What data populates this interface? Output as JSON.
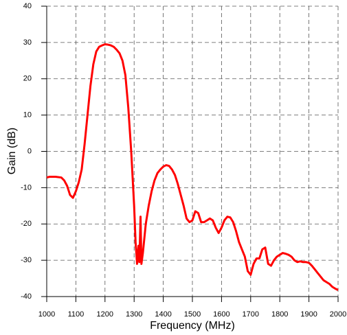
{
  "chart_data": {
    "type": "line",
    "x_label": "Frequency (MHz)",
    "y_label": "Gain (dB)",
    "x": [
      1000,
      1010,
      1030,
      1050,
      1060,
      1070,
      1080,
      1090,
      1100,
      1110,
      1120,
      1130,
      1140,
      1150,
      1160,
      1170,
      1180,
      1190,
      1200,
      1210,
      1220,
      1230,
      1240,
      1250,
      1260,
      1270,
      1280,
      1290,
      1300,
      1305,
      1310,
      1315,
      1318,
      1322,
      1325,
      1330,
      1340,
      1350,
      1360,
      1370,
      1380,
      1390,
      1400,
      1410,
      1420,
      1430,
      1440,
      1450,
      1460,
      1470,
      1480,
      1490,
      1500,
      1510,
      1520,
      1530,
      1540,
      1550,
      1560,
      1570,
      1580,
      1590,
      1600,
      1610,
      1620,
      1630,
      1640,
      1650,
      1660,
      1670,
      1680,
      1690,
      1700,
      1710,
      1720,
      1730,
      1740,
      1750,
      1760,
      1770,
      1780,
      1790,
      1800,
      1810,
      1820,
      1830,
      1840,
      1850,
      1860,
      1870,
      1880,
      1890,
      1900,
      1910,
      1920,
      1930,
      1940,
      1950,
      1960,
      1970,
      1980,
      1990,
      2000
    ],
    "values": [
      -7.2,
      -7,
      -7,
      -7.2,
      -8,
      -9.5,
      -12,
      -12.8,
      -11,
      -8.5,
      -5,
      2,
      10,
      18,
      24,
      27.5,
      28.8,
      29.2,
      29.5,
      29.4,
      29.2,
      28.8,
      28,
      27,
      25,
      21,
      12,
      0,
      -15,
      -25,
      -31,
      -26,
      -30.5,
      -18,
      -31,
      -28,
      -20,
      -15,
      -11,
      -8,
      -6,
      -5,
      -4.2,
      -3.8,
      -4,
      -5,
      -6.5,
      -9,
      -12,
      -15,
      -18.5,
      -19.5,
      -19,
      -16.5,
      -17,
      -19.5,
      -19.5,
      -19,
      -18.5,
      -19,
      -21,
      -22.5,
      -21,
      -19,
      -18,
      -18.2,
      -19.5,
      -22,
      -25,
      -27,
      -29,
      -33,
      -34,
      -31,
      -29.5,
      -29.5,
      -27,
      -26.5,
      -31,
      -31.5,
      -30,
      -29,
      -28.5,
      -28,
      -28.2,
      -28.5,
      -29,
      -30,
      -30.5,
      -30.3,
      -30.5,
      -30.5,
      -30.7,
      -31.5,
      -32.5,
      -33.5,
      -34.5,
      -35.5,
      -36,
      -36.5,
      -37.3,
      -37.8,
      -38.2
    ],
    "color": "#ff0000",
    "xlim": [
      1000,
      2000
    ],
    "xticks": [
      1000,
      1100,
      1200,
      1300,
      1400,
      1500,
      1600,
      1700,
      1800,
      1900,
      2000
    ],
    "ylim": [
      -40,
      40
    ],
    "yticks": [
      -40,
      -30,
      -20,
      -10,
      0,
      10,
      20,
      30,
      40
    ],
    "grid": true
  }
}
